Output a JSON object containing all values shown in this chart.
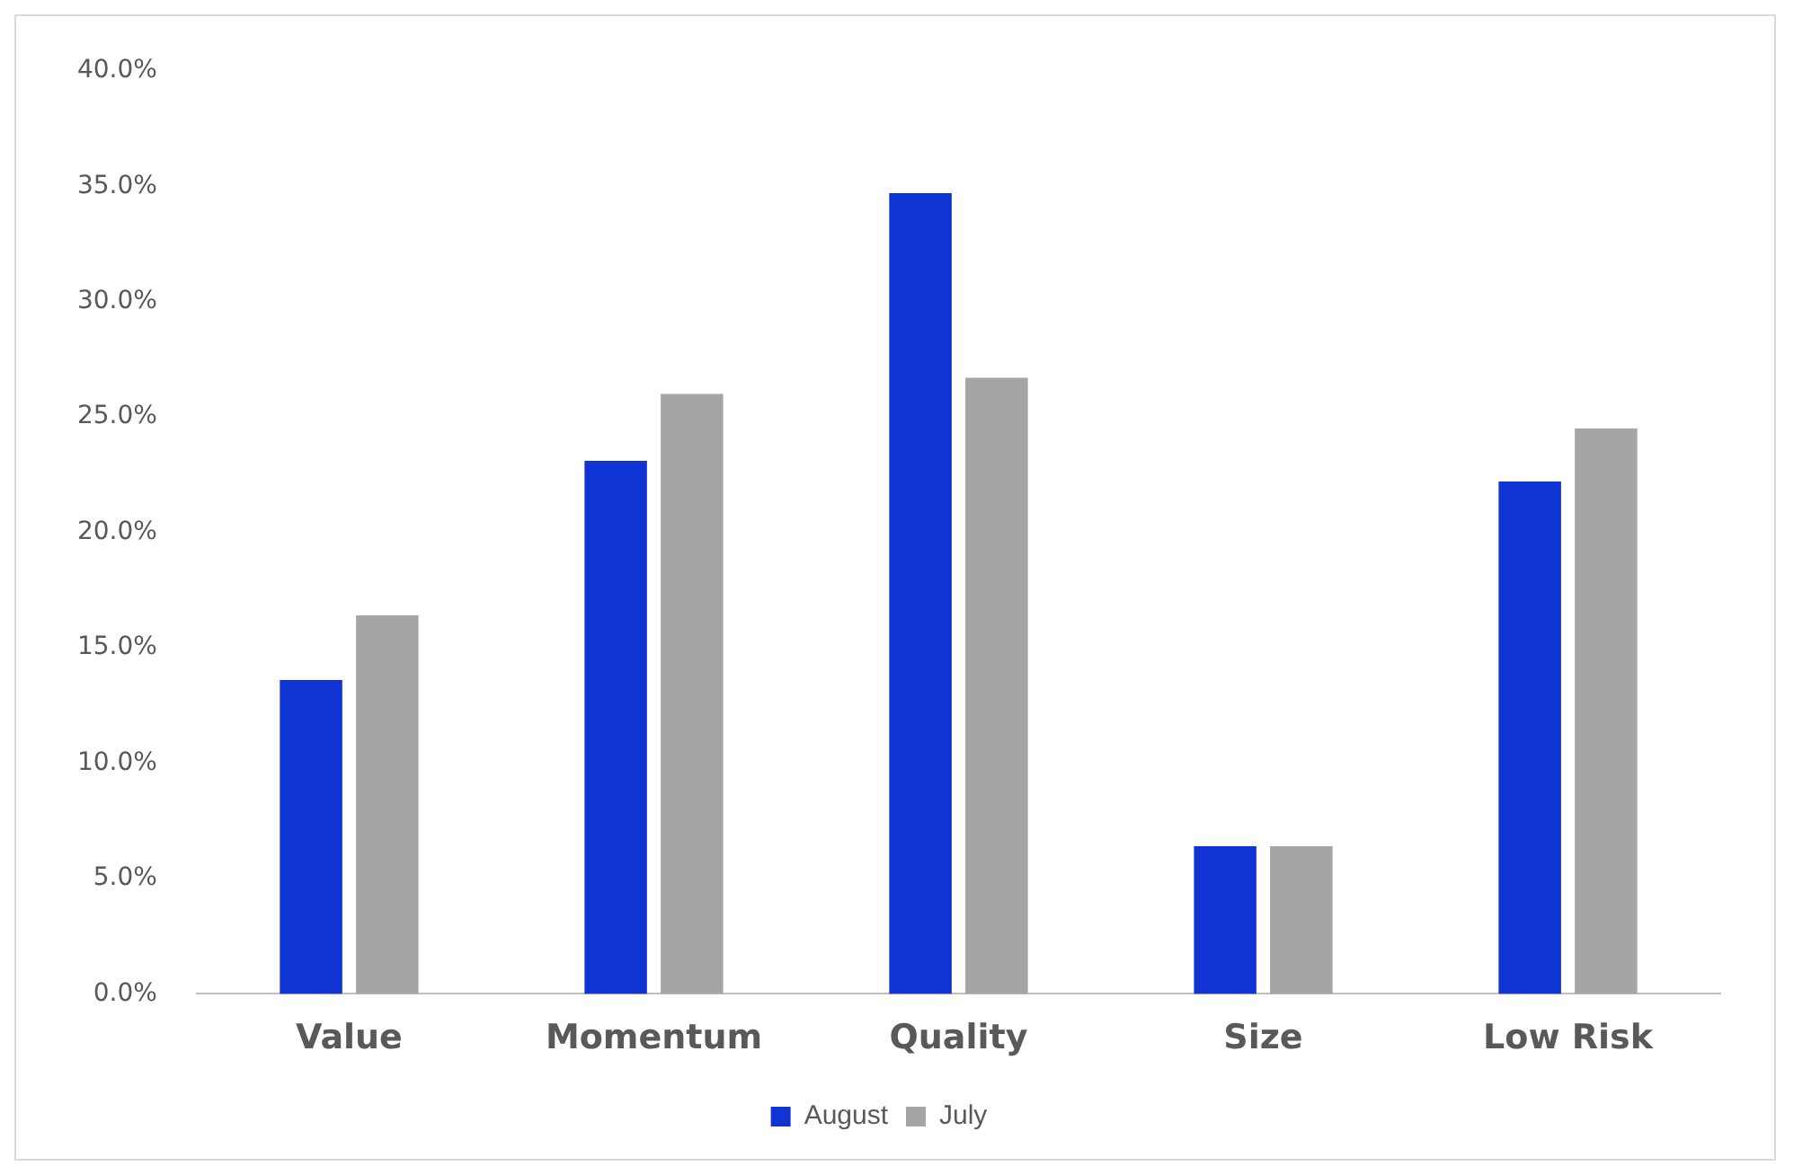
{
  "chart_data": {
    "type": "bar",
    "categories": [
      "Value",
      "Momentum",
      "Quality",
      "Size",
      "Low Risk"
    ],
    "series": [
      {
        "name": "August",
        "color": "#1033d4",
        "values": [
          13.6,
          23.1,
          34.7,
          6.4,
          22.2
        ]
      },
      {
        "name": "July",
        "color": "#a5a5a5",
        "values": [
          16.4,
          26.0,
          26.7,
          6.4,
          24.5
        ]
      }
    ],
    "ylim": [
      0,
      40
    ],
    "yticks": [
      {
        "value": 0,
        "label": "0.0%"
      },
      {
        "value": 5,
        "label": "5.0%"
      },
      {
        "value": 10,
        "label": "10.0%"
      },
      {
        "value": 15,
        "label": "15.0%"
      },
      {
        "value": 20,
        "label": "20.0%"
      },
      {
        "value": 25,
        "label": "25.0%"
      },
      {
        "value": 30,
        "label": "30.0%"
      },
      {
        "value": 35,
        "label": "35.0%"
      },
      {
        "value": 40,
        "label": "40.0%"
      }
    ],
    "grid": false,
    "legend": "bottom"
  }
}
